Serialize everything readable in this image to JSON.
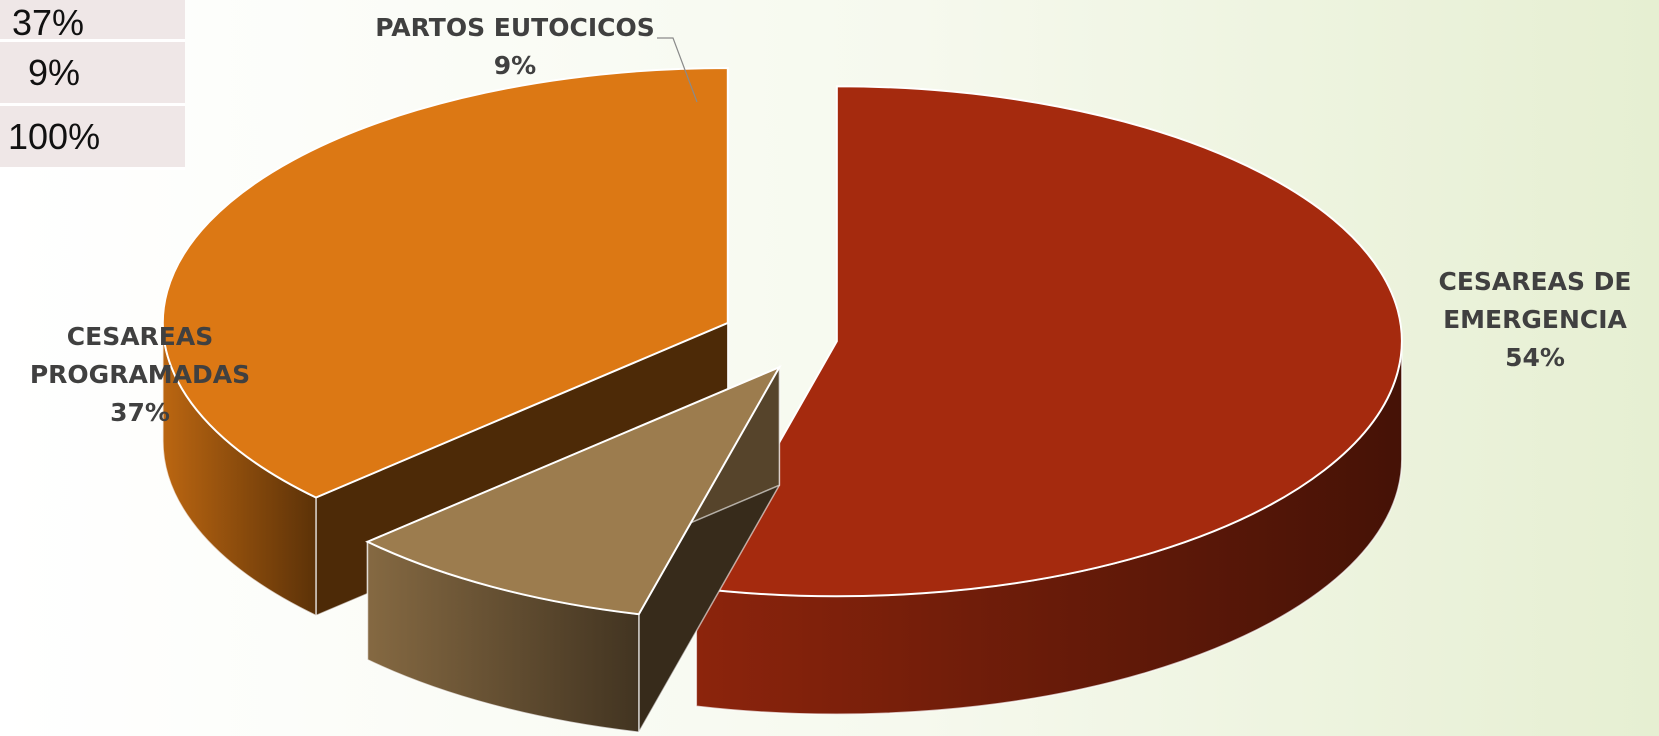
{
  "table_fragment": {
    "rows": [
      "37%",
      "9%",
      "100%"
    ]
  },
  "chart_data": {
    "type": "pie",
    "categories": [
      "CESAREAS DE EMERGENCIA",
      "PARTOS EUTOCICOS",
      "CESAREAS PROGRAMADAS"
    ],
    "values": [
      54,
      9,
      37
    ],
    "value_labels": [
      "54%",
      "9%",
      "37%"
    ],
    "label_lines": [
      [
        "CESAREAS DE",
        "EMERGENCIA"
      ],
      [
        "PARTOS EUTOCICOS"
      ],
      [
        "CESAREAS",
        "PROGRAMADAS"
      ]
    ],
    "colors": [
      "#a52a0e",
      "#9c7c4e",
      "#dc7814"
    ],
    "style": "3d-exploded",
    "legend": "none"
  }
}
